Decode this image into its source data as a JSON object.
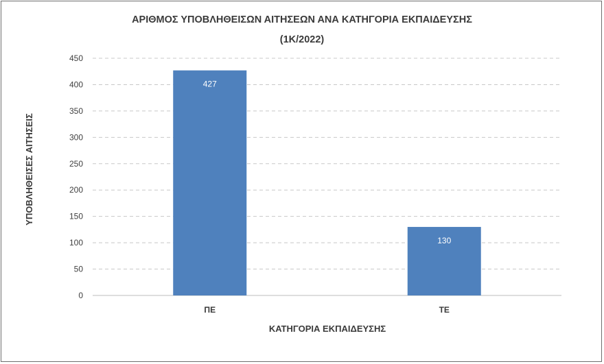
{
  "chart_data": {
    "type": "bar",
    "title": "ΑΡΙΘΜΟΣ ΥΠΟΒΛΗΘΕΙΣΩΝ ΑΙΤΗΣΕΩΝ ΑΝΑ ΚΑΤΗΓΟΡΙΑ ΕΚΠΑΙΔΕΥΣΗΣ",
    "subtitle": "(1Κ/2022)",
    "xlabel": "ΚΑΤΗΓΟΡΙΑ ΕΚΠΑΙΔΕΥΣΗΣ",
    "ylabel": "ΥΠΟΒΛΗΘΕΙΣΕΣ ΑΙΤΗΣΕΙΣ",
    "categories": [
      "ΠΕ",
      "ΤΕ"
    ],
    "values": [
      427,
      130
    ],
    "data_labels": [
      "427",
      "130"
    ],
    "ylim": [
      0,
      450
    ],
    "yticks": [
      "0",
      "50",
      "100",
      "150",
      "200",
      "250",
      "300",
      "350",
      "400",
      "450"
    ],
    "grid": true,
    "legend": "none",
    "bar_color": "#4f81bd"
  }
}
